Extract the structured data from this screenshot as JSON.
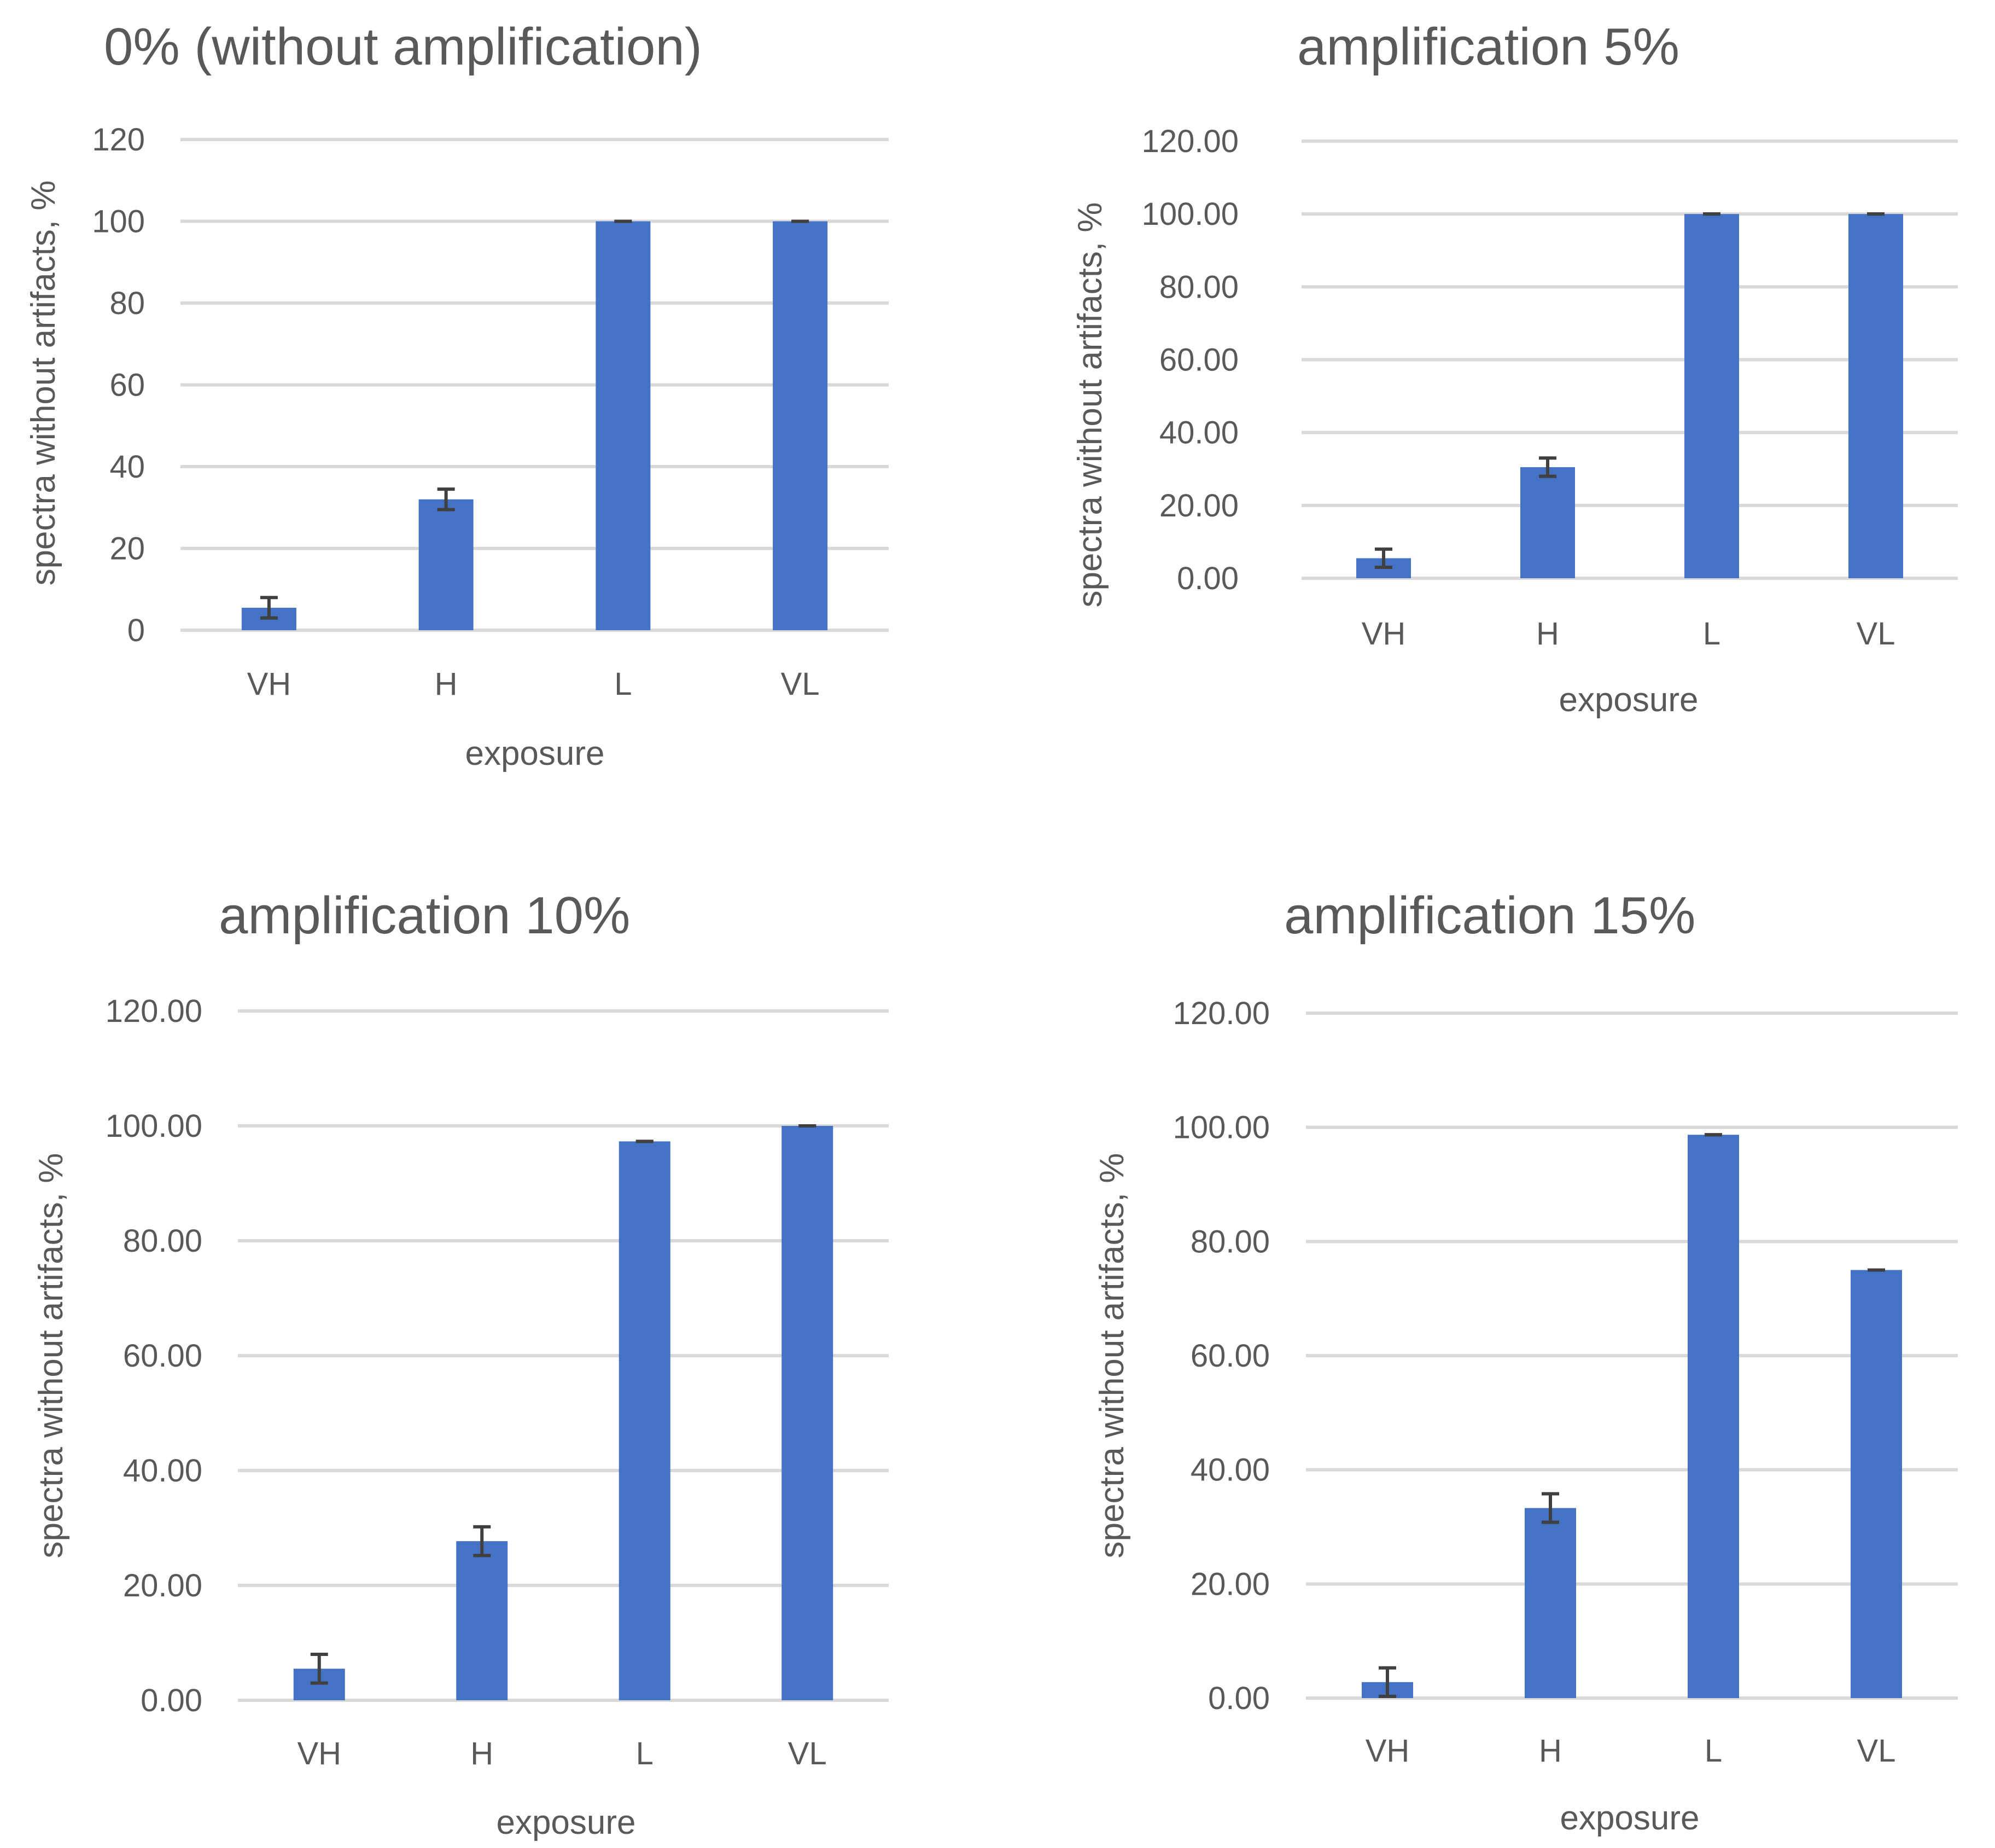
{
  "colors": {
    "bar": "#4472c4",
    "grid": "#d9d9d9",
    "text": "#595959",
    "error_bar": "#404040"
  },
  "chart_data": [
    {
      "type": "bar",
      "title": "0% (without amplification)",
      "xlabel": "exposure",
      "ylabel": "spectra without artifacts, %",
      "categories": [
        "VH",
        "H",
        "L",
        "VL"
      ],
      "values": [
        5.5,
        32,
        100,
        100
      ],
      "errors": [
        2.5,
        2.5,
        0,
        0
      ],
      "ylim": [
        0,
        120
      ],
      "yticks": [
        0,
        20,
        40,
        60,
        80,
        100,
        120
      ],
      "ytick_labels": [
        "0",
        "20",
        "40",
        "60",
        "80",
        "100",
        "120"
      ],
      "grid": true
    },
    {
      "type": "bar",
      "title": "amplification 5%",
      "xlabel": "exposure",
      "ylabel": "spectra without artifacts, %",
      "categories": [
        "VH",
        "H",
        "L",
        "VL"
      ],
      "values": [
        5.5,
        30.5,
        100,
        100
      ],
      "errors": [
        2.5,
        2.5,
        0,
        0
      ],
      "ylim": [
        0,
        120
      ],
      "yticks": [
        0,
        20,
        40,
        60,
        80,
        100,
        120
      ],
      "ytick_labels": [
        "0.00",
        "20.00",
        "40.00",
        "60.00",
        "80.00",
        "100.00",
        "120.00"
      ],
      "grid": true
    },
    {
      "type": "bar",
      "title": "amplification 10%",
      "xlabel": "exposure",
      "ylabel": "spectra without artifacts, %",
      "categories": [
        "VH",
        "H",
        "L",
        "VL"
      ],
      "values": [
        5.5,
        27.7,
        97.3,
        100
      ],
      "errors": [
        2.5,
        2.5,
        0,
        0
      ],
      "ylim": [
        0,
        120
      ],
      "yticks": [
        0,
        20,
        40,
        60,
        80,
        100,
        120
      ],
      "ytick_labels": [
        "0.00",
        "20.00",
        "40.00",
        "60.00",
        "80.00",
        "100.00",
        "120.00"
      ],
      "grid": true
    },
    {
      "type": "bar",
      "title": "amplification 15%",
      "xlabel": "exposure",
      "ylabel": "spectra without artifacts, %",
      "categories": [
        "VH",
        "H",
        "L",
        "VL"
      ],
      "values": [
        2.8,
        33.3,
        98.7,
        75
      ],
      "errors": [
        2.5,
        2.5,
        0,
        0
      ],
      "ylim": [
        0,
        120
      ],
      "yticks": [
        0,
        20,
        40,
        60,
        80,
        100,
        120
      ],
      "ytick_labels": [
        "0.00",
        "20.00",
        "40.00",
        "60.00",
        "80.00",
        "100.00",
        "120.00"
      ],
      "grid": true
    }
  ]
}
